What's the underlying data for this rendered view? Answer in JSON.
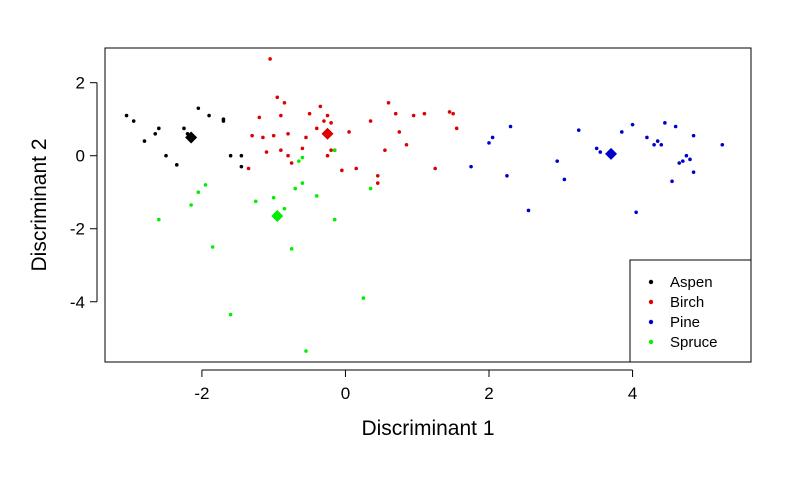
{
  "chart_data": {
    "type": "scatter",
    "title": "",
    "xlabel": "Discriminant 1",
    "ylabel": "Discriminant 2",
    "xlim": [
      -3.35,
      5.65
    ],
    "ylim": [
      -5.65,
      2.95
    ],
    "xticks": [
      -2,
      0,
      2,
      4
    ],
    "yticks": [
      -4,
      -2,
      0,
      2
    ],
    "xtick_labels": [
      "-2",
      "0",
      "2",
      "4"
    ],
    "ytick_labels": [
      "-4",
      "-2",
      "0",
      "2"
    ],
    "grid": false,
    "legend_position": "bottom-right",
    "series": [
      {
        "name": "Aspen",
        "color": "#000000",
        "centroid": [
          -2.15,
          0.5
        ],
        "points": [
          [
            -3.05,
            1.1
          ],
          [
            -2.95,
            0.95
          ],
          [
            -2.8,
            0.4
          ],
          [
            -2.65,
            0.6
          ],
          [
            -2.6,
            0.75
          ],
          [
            -2.5,
            0.0
          ],
          [
            -2.35,
            -0.25
          ],
          [
            -2.25,
            0.75
          ],
          [
            -2.2,
            0.6
          ],
          [
            -2.05,
            1.3
          ],
          [
            -1.9,
            1.1
          ],
          [
            -1.7,
            1.0
          ],
          [
            -1.7,
            0.95
          ],
          [
            -1.6,
            0.0
          ],
          [
            -1.45,
            -0.3
          ],
          [
            -1.45,
            0.0
          ]
        ]
      },
      {
        "name": "Birch",
        "color": "#DF0000",
        "centroid": [
          -0.25,
          0.6
        ],
        "points": [
          [
            -1.05,
            2.65
          ],
          [
            -0.95,
            1.6
          ],
          [
            -0.85,
            1.45
          ],
          [
            -1.2,
            1.05
          ],
          [
            -0.9,
            1.1
          ],
          [
            -0.8,
            0.6
          ],
          [
            -1.0,
            0.55
          ],
          [
            -1.15,
            0.5
          ],
          [
            -1.3,
            0.55
          ],
          [
            -1.1,
            0.1
          ],
          [
            -0.9,
            0.15
          ],
          [
            -0.8,
            0.0
          ],
          [
            -0.75,
            -0.2
          ],
          [
            -0.6,
            0.2
          ],
          [
            -0.55,
            0.5
          ],
          [
            -0.5,
            1.15
          ],
          [
            -0.4,
            0.75
          ],
          [
            -0.35,
            1.35
          ],
          [
            -0.3,
            0.95
          ],
          [
            -0.25,
            1.1
          ],
          [
            -0.2,
            0.9
          ],
          [
            -0.2,
            0.15
          ],
          [
            -0.25,
            0.0
          ],
          [
            -0.15,
            0.15
          ],
          [
            -0.05,
            -0.4
          ],
          [
            0.05,
            0.65
          ],
          [
            0.15,
            -0.35
          ],
          [
            0.35,
            0.95
          ],
          [
            0.45,
            -0.55
          ],
          [
            0.55,
            0.15
          ],
          [
            0.6,
            1.45
          ],
          [
            0.7,
            1.15
          ],
          [
            0.75,
            0.65
          ],
          [
            0.85,
            0.3
          ],
          [
            0.95,
            1.1
          ],
          [
            1.1,
            1.15
          ],
          [
            1.25,
            -0.35
          ],
          [
            1.45,
            1.2
          ],
          [
            1.5,
            1.15
          ],
          [
            1.55,
            0.75
          ],
          [
            0.45,
            -0.75
          ],
          [
            -1.35,
            -0.35
          ]
        ]
      },
      {
        "name": "Pine",
        "color": "#0000CD",
        "centroid": [
          3.7,
          0.05
        ],
        "points": [
          [
            1.75,
            -0.3
          ],
          [
            2.0,
            0.35
          ],
          [
            2.05,
            0.5
          ],
          [
            2.25,
            -0.55
          ],
          [
            2.3,
            0.8
          ],
          [
            2.55,
            -1.5
          ],
          [
            2.95,
            -0.15
          ],
          [
            3.05,
            -0.65
          ],
          [
            3.25,
            0.7
          ],
          [
            3.5,
            0.2
          ],
          [
            3.55,
            0.1
          ],
          [
            3.85,
            0.65
          ],
          [
            4.0,
            0.85
          ],
          [
            4.05,
            -1.55
          ],
          [
            4.2,
            0.5
          ],
          [
            4.3,
            0.3
          ],
          [
            4.35,
            0.4
          ],
          [
            4.4,
            0.3
          ],
          [
            4.45,
            0.9
          ],
          [
            4.55,
            -0.7
          ],
          [
            4.6,
            0.8
          ],
          [
            4.65,
            -0.2
          ],
          [
            4.7,
            -0.15
          ],
          [
            4.75,
            0.0
          ],
          [
            4.8,
            -0.1
          ],
          [
            4.85,
            -0.45
          ],
          [
            4.85,
            0.55
          ],
          [
            5.25,
            0.3
          ]
        ]
      },
      {
        "name": "Spruce",
        "color": "#00EE00",
        "centroid": [
          -0.95,
          -1.65
        ],
        "points": [
          [
            -2.6,
            -1.75
          ],
          [
            -2.15,
            -1.35
          ],
          [
            -2.05,
            -1.0
          ],
          [
            -1.95,
            -0.8
          ],
          [
            -1.85,
            -2.5
          ],
          [
            -1.6,
            -4.35
          ],
          [
            -1.25,
            -1.25
          ],
          [
            -1.0,
            -1.15
          ],
          [
            -0.85,
            -1.45
          ],
          [
            -0.75,
            -2.55
          ],
          [
            -0.7,
            -0.9
          ],
          [
            -0.65,
            -0.15
          ],
          [
            -0.6,
            -0.75
          ],
          [
            -0.55,
            -5.35
          ],
          [
            -0.4,
            -1.1
          ],
          [
            -0.15,
            -1.75
          ],
          [
            -0.15,
            0.15
          ],
          [
            0.25,
            -3.9
          ],
          [
            0.35,
            -0.9
          ],
          [
            -0.6,
            -0.05
          ]
        ]
      }
    ]
  }
}
